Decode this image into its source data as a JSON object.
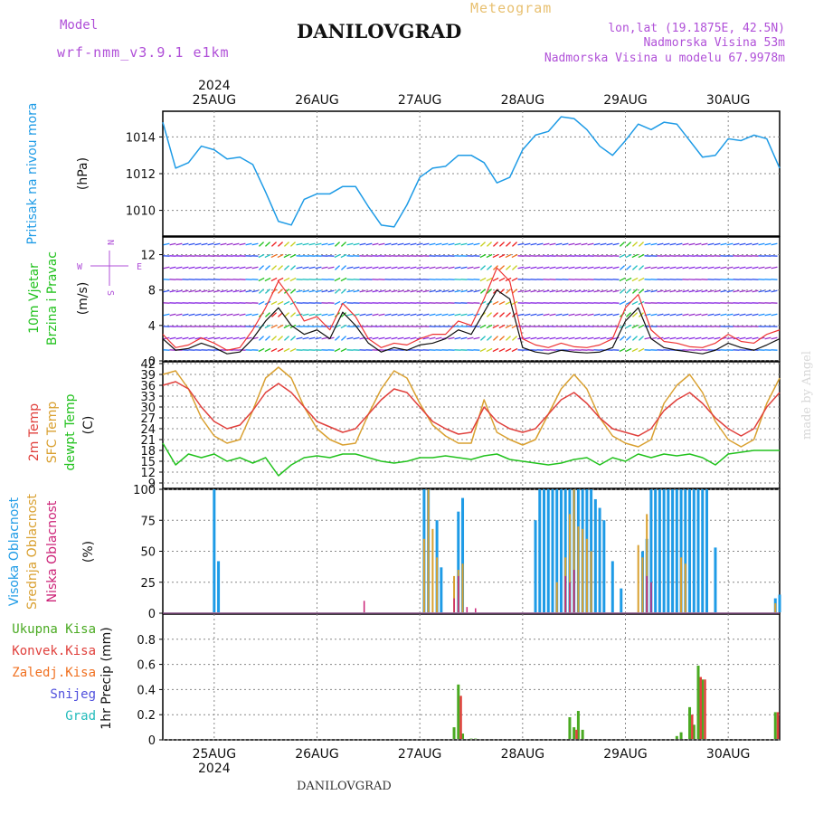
{
  "header": {
    "title": "DANILOVGRAD",
    "product": "Meteogram",
    "model_label": "Model",
    "model_name": "wrf-nmm_v3.9.1 e1km",
    "location": "lon,lat (19.1875E, 42.5N)",
    "elevation": "Nadmorska Visina 53m",
    "model_elevation": "Nadmorska Visina u modelu 67.9978m",
    "watermark": "made by Angel",
    "footer": "DANILOVGRAD"
  },
  "colors": {
    "pressure": "#1e9be6",
    "temp2m": "#e0403c",
    "sfc": "#d9a030",
    "dew": "#22c21e",
    "high_cloud": "#1e9be6",
    "mid_cloud": "#d9a030",
    "low_cloud": "#cc2277",
    "total_rain": "#4aaa22",
    "conv_rain": "#e0403c",
    "grid_rain": "#f07020",
    "snow": "#5050dd",
    "hail": "#22bbbb"
  },
  "chart_data": [
    {
      "type": "line",
      "panel": "pressure",
      "ylabel": [
        "Pritisak na nivou mora",
        "(hPa)"
      ],
      "ylim": [
        1008.6,
        1015.4
      ],
      "yticks": [
        1010,
        1012,
        1014
      ],
      "grid": true,
      "x": [
        0,
        3,
        6,
        9,
        12,
        15,
        18,
        21,
        24,
        27,
        30,
        33,
        36,
        39,
        42,
        45,
        48,
        51,
        54,
        57,
        60,
        63,
        66,
        69,
        72,
        75,
        78,
        81,
        84,
        87,
        90,
        93,
        96,
        99,
        102,
        105,
        108,
        111,
        114,
        117,
        120,
        123,
        126,
        129,
        132,
        135,
        138,
        141,
        144
      ],
      "series": [
        {
          "name": "",
          "values": [
            1014.8,
            1012.3,
            1012.6,
            1013.5,
            1013.3,
            1012.8,
            1012.9,
            1012.5,
            1011.0,
            1009.4,
            1009.2,
            1010.6,
            1010.9,
            1010.9,
            1011.3,
            1011.3,
            1010.2,
            1009.2,
            1009.1,
            1010.3,
            1011.8,
            1012.3,
            1012.4,
            1013.0,
            1013.0,
            1012.6,
            1011.5,
            1011.8,
            1013.3,
            1014.1,
            1014.3,
            1015.1,
            1015.0,
            1014.4,
            1013.5,
            1013.0,
            1013.8,
            1014.7,
            1014.4,
            1014.8,
            1014.7,
            1013.8,
            1012.9,
            1013.0,
            1013.9,
            1013.8,
            1014.1,
            1013.9,
            1012.3
          ]
        }
      ]
    },
    {
      "type": "line",
      "panel": "wind",
      "ylabel": [
        "10m Vjetar",
        "Brzina i Pravac",
        "(m/s)"
      ],
      "compass": [
        "N",
        "W",
        "E",
        "S"
      ],
      "ylim": [
        0,
        14
      ],
      "yticks": [
        0,
        4,
        8,
        12
      ],
      "grid": true,
      "x": [
        0,
        3,
        6,
        9,
        12,
        15,
        18,
        21,
        24,
        27,
        30,
        33,
        36,
        39,
        42,
        45,
        48,
        51,
        54,
        57,
        60,
        63,
        66,
        69,
        72,
        75,
        78,
        81,
        84,
        87,
        90,
        93,
        96,
        99,
        102,
        105,
        108,
        111,
        114,
        117,
        120,
        123,
        126,
        129,
        132,
        135,
        138,
        141,
        144
      ],
      "series": [
        {
          "name": "",
          "values": [
            2.5,
            1.2,
            1.4,
            2.0,
            1.5,
            0.8,
            1.0,
            2.5,
            4.5,
            6.0,
            4.0,
            3.0,
            3.5,
            2.5,
            5.5,
            4.0,
            2.0,
            1.0,
            1.5,
            1.2,
            1.8,
            2.0,
            2.5,
            3.5,
            3.0,
            5.5,
            8.0,
            7.0,
            1.5,
            1.0,
            0.8,
            1.2,
            1.0,
            0.9,
            1.0,
            1.5,
            4.5,
            6.0,
            2.5,
            1.5,
            1.2,
            1.0,
            0.8,
            1.2,
            2.0,
            1.5,
            1.2,
            1.8,
            2.5
          ]
        },
        {
          "name": "",
          "values": [
            3.0,
            1.5,
            1.8,
            2.6,
            2.0,
            1.2,
            1.5,
            3.5,
            6.0,
            9.0,
            7.0,
            4.5,
            5.0,
            3.5,
            6.5,
            5.0,
            2.5,
            1.5,
            2.0,
            1.8,
            2.5,
            3.0,
            3.0,
            4.5,
            4.0,
            7.0,
            10.5,
            9.0,
            2.5,
            1.8,
            1.5,
            2.0,
            1.6,
            1.5,
            1.8,
            2.5,
            6.0,
            7.5,
            3.5,
            2.2,
            2.0,
            1.6,
            1.5,
            2.0,
            3.0,
            2.2,
            2.0,
            3.0,
            3.5
          ]
        }
      ]
    },
    {
      "type": "line",
      "panel": "temperature",
      "ylabel": [
        "2m Temp",
        "SFC Temp",
        "dewpt Temp",
        "(C)"
      ],
      "ylim": [
        7.5,
        42.5
      ],
      "yticks": [
        9,
        12,
        15,
        18,
        21,
        24,
        27,
        30,
        33,
        36,
        39,
        42
      ],
      "grid": true,
      "x": [
        0,
        3,
        6,
        9,
        12,
        15,
        18,
        21,
        24,
        27,
        30,
        33,
        36,
        39,
        42,
        45,
        48,
        51,
        54,
        57,
        60,
        63,
        66,
        69,
        72,
        75,
        78,
        81,
        84,
        87,
        90,
        93,
        96,
        99,
        102,
        105,
        108,
        111,
        114,
        117,
        120,
        123,
        126,
        129,
        132,
        135,
        138,
        141,
        144
      ],
      "series": [
        {
          "name": "2m Temp",
          "values": [
            36,
            37,
            35,
            30,
            26,
            24,
            25,
            29,
            34,
            36.5,
            34,
            30,
            26,
            24.5,
            23,
            24,
            28,
            32,
            35,
            34,
            30,
            26,
            24,
            22.5,
            23,
            30,
            26,
            24,
            23,
            24,
            28,
            32,
            34,
            31,
            27,
            24,
            23,
            22,
            24,
            29,
            32,
            34,
            31,
            27,
            24,
            22,
            24,
            30,
            34
          ]
        },
        {
          "name": "SFC Temp",
          "values": [
            39,
            40,
            35,
            27,
            22,
            20,
            21,
            29,
            38,
            41,
            38,
            30,
            24,
            21,
            19.5,
            20,
            28,
            35,
            40,
            38,
            31,
            25,
            22,
            20,
            20,
            32,
            23,
            21,
            19.5,
            21,
            28,
            35,
            39,
            35,
            27,
            22,
            20,
            19,
            21,
            31,
            36,
            39,
            34,
            26,
            21,
            19,
            21,
            31,
            38
          ]
        },
        {
          "name": "dewpt Temp",
          "values": [
            20,
            14,
            17,
            16,
            17,
            15,
            16,
            14.5,
            16,
            11,
            14,
            16,
            16.5,
            16,
            17,
            17,
            16,
            15,
            14.5,
            15,
            16,
            16,
            16.5,
            16,
            15.5,
            16.5,
            17,
            15.5,
            15,
            14.5,
            14,
            14.5,
            15.5,
            16,
            14,
            16,
            15,
            17,
            16,
            17,
            16.5,
            17,
            16,
            14,
            17,
            17.5,
            18,
            18,
            18
          ]
        }
      ]
    },
    {
      "type": "bar",
      "panel": "clouds",
      "ylabel": [
        "Visoka Oblacnost",
        "Srednja Oblacnost",
        "Niska Oblacnost",
        "(%)"
      ],
      "ylim": [
        0,
        100
      ],
      "yticks": [
        0,
        25,
        50,
        75,
        100
      ],
      "grid": true,
      "series": [
        {
          "name": "Visoka Oblacnost",
          "bars": [
            [
              12,
              100
            ],
            [
              13,
              42
            ],
            [
              61,
              100
            ],
            [
              62,
              100
            ],
            [
              64,
              75
            ],
            [
              65,
              37
            ],
            [
              69,
              82
            ],
            [
              70,
              93
            ],
            [
              87,
              75
            ],
            [
              88,
              100
            ],
            [
              89,
              100
            ],
            [
              90,
              100
            ],
            [
              91,
              100
            ],
            [
              92,
              100
            ],
            [
              93,
              100
            ],
            [
              94,
              100
            ],
            [
              95,
              100
            ],
            [
              96,
              100
            ],
            [
              97,
              100
            ],
            [
              98,
              100
            ],
            [
              99,
              100
            ],
            [
              100,
              100
            ],
            [
              101,
              92
            ],
            [
              102,
              85
            ],
            [
              103,
              75
            ],
            [
              105,
              42
            ],
            [
              107,
              20
            ],
            [
              112,
              50
            ],
            [
              113,
              60
            ],
            [
              114,
              100
            ],
            [
              115,
              100
            ],
            [
              116,
              100
            ],
            [
              117,
              100
            ],
            [
              118,
              100
            ],
            [
              119,
              100
            ],
            [
              120,
              100
            ],
            [
              121,
              100
            ],
            [
              122,
              100
            ],
            [
              123,
              100
            ],
            [
              124,
              100
            ],
            [
              125,
              100
            ],
            [
              126,
              100
            ],
            [
              127,
              100
            ],
            [
              129,
              53
            ],
            [
              143,
              12
            ],
            [
              144,
              15
            ]
          ]
        },
        {
          "name": "Srednja Oblacnost",
          "bars": [
            [
              61,
              60
            ],
            [
              62,
              100
            ],
            [
              63,
              68
            ],
            [
              64,
              45
            ],
            [
              68,
              30
            ],
            [
              69,
              35
            ],
            [
              70,
              40
            ],
            [
              92,
              25
            ],
            [
              94,
              45
            ],
            [
              95,
              80
            ],
            [
              96,
              100
            ],
            [
              97,
              70
            ],
            [
              98,
              68
            ],
            [
              99,
              60
            ],
            [
              100,
              50
            ],
            [
              111,
              55
            ],
            [
              112,
              45
            ],
            [
              113,
              80
            ],
            [
              121,
              45
            ],
            [
              122,
              40
            ],
            [
              143,
              8
            ]
          ]
        },
        {
          "name": "Niska Oblacnost",
          "bars": [
            [
              47,
              10
            ],
            [
              68,
              12
            ],
            [
              69,
              30
            ],
            [
              71,
              5
            ],
            [
              73,
              4
            ],
            [
              94,
              30
            ],
            [
              95,
              25
            ],
            [
              96,
              35
            ],
            [
              113,
              30
            ],
            [
              114,
              25
            ]
          ]
        }
      ]
    },
    {
      "type": "bar",
      "panel": "precipitation",
      "ylabel": [
        "1hr Precip (mm)"
      ],
      "legend": [
        "Ukupna Kisa",
        "Konvek.Kisa",
        "Zaledj.Kisa",
        "Snijeg",
        "Grad"
      ],
      "ylim": [
        0,
        1.0
      ],
      "yticks": [
        0,
        0.2,
        0.4,
        0.6,
        0.8
      ],
      "grid": true,
      "series": [
        {
          "name": "Ukupna Kisa",
          "bars": [
            [
              68,
              0.1
            ],
            [
              69,
              0.44
            ],
            [
              70,
              0.05
            ],
            [
              72,
              0.01
            ],
            [
              73,
              0.01
            ],
            [
              95,
              0.18
            ],
            [
              96,
              0.1
            ],
            [
              97,
              0.23
            ],
            [
              98,
              0.08
            ],
            [
              120,
              0.03
            ],
            [
              121,
              0.06
            ],
            [
              123,
              0.26
            ],
            [
              124,
              0.12
            ],
            [
              125,
              0.59
            ],
            [
              126,
              0.48
            ],
            [
              143,
              0.22
            ]
          ]
        },
        {
          "name": "Konvek.Kisa",
          "bars": [
            [
              69,
              0.35
            ],
            [
              96,
              0.08
            ],
            [
              123,
              0.2
            ],
            [
              125,
              0.5
            ],
            [
              126,
              0.48
            ],
            [
              143,
              0.22
            ]
          ]
        }
      ]
    }
  ],
  "time_axis": {
    "year": "2024",
    "hours_per_day": 24,
    "day_labels": [
      {
        "hour": 12,
        "label": "25AUG"
      },
      {
        "hour": 36,
        "label": "26AUG"
      },
      {
        "hour": 60,
        "label": "27AUG"
      },
      {
        "hour": 84,
        "label": "28AUG"
      },
      {
        "hour": 108,
        "label": "29AUG"
      },
      {
        "hour": 132,
        "label": "30AUG"
      }
    ],
    "range_hours": [
      0,
      144
    ]
  }
}
